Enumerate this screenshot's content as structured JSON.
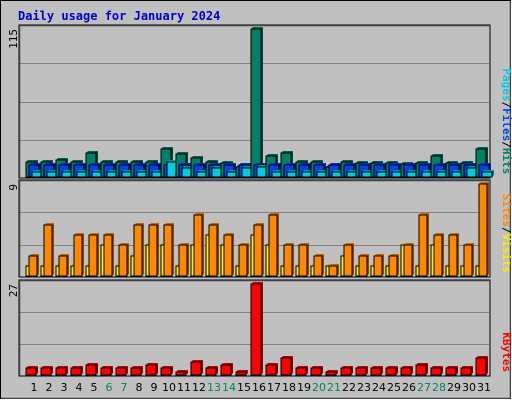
{
  "chart_data": [
    {
      "type": "bar",
      "title": "Daily usage for January 2024",
      "ylim": [
        0,
        115
      ],
      "yticklabel": "115",
      "axis_label_parts": [
        "Pages",
        "/",
        "Files",
        "/",
        "Hits"
      ],
      "categories": [
        "1",
        "2",
        "3",
        "4",
        "5",
        "6",
        "7",
        "8",
        "9",
        "10",
        "11",
        "12",
        "13",
        "14",
        "15",
        "16",
        "17",
        "18",
        "19",
        "20",
        "21",
        "22",
        "23",
        "24",
        "25",
        "26",
        "27",
        "28",
        "29",
        "30",
        "31"
      ],
      "weekend_days": [
        "6",
        "7",
        "13",
        "14",
        "20",
        "21",
        "27",
        "28"
      ],
      "series": [
        {
          "name": "Hits",
          "values": [
            12,
            12,
            13,
            12,
            19,
            12,
            12,
            12,
            12,
            22,
            18,
            15,
            12,
            11,
            8,
            115,
            16,
            19,
            12,
            12,
            8,
            12,
            11,
            11,
            11,
            10,
            11,
            16,
            11,
            11,
            22
          ]
        },
        {
          "name": "Files",
          "values": [
            9,
            9,
            9,
            9,
            9,
            9,
            9,
            9,
            9,
            9,
            9,
            9,
            9,
            9,
            9,
            9,
            9,
            9,
            9,
            9,
            9,
            9,
            9,
            9,
            9,
            9,
            9,
            9,
            9,
            9,
            9
          ]
        },
        {
          "name": "Pages",
          "values": [
            4,
            4,
            4,
            4,
            4,
            4,
            4,
            4,
            4,
            12,
            7,
            4,
            7,
            4,
            7,
            8,
            4,
            4,
            4,
            4,
            4,
            4,
            4,
            4,
            4,
            4,
            4,
            4,
            4,
            7,
            4
          ]
        }
      ],
      "colors": {
        "Hits": "#008066",
        "Files": "#0044ee",
        "Pages": "#00ccdd"
      }
    },
    {
      "type": "bar",
      "ylim": [
        0,
        9
      ],
      "yticklabel": "9",
      "axis_label_parts": [
        "Sites",
        "/",
        "Visits"
      ],
      "categories": [
        "1",
        "2",
        "3",
        "4",
        "5",
        "6",
        "7",
        "8",
        "9",
        "10",
        "11",
        "12",
        "13",
        "14",
        "15",
        "16",
        "17",
        "18",
        "19",
        "20",
        "21",
        "22",
        "23",
        "24",
        "25",
        "26",
        "27",
        "28",
        "29",
        "30",
        "31"
      ],
      "series": [
        {
          "name": "Visits",
          "values": [
            1,
            1,
            1,
            1,
            1,
            3,
            1,
            2,
            3,
            3,
            1,
            3,
            4,
            3,
            1,
            4,
            3,
            1,
            1,
            1,
            1,
            2,
            1,
            1,
            1,
            3,
            1,
            3,
            1,
            1,
            1
          ]
        },
        {
          "name": "Sites",
          "values": [
            2,
            5,
            2,
            4,
            4,
            4,
            3,
            5,
            5,
            5,
            3,
            6,
            5,
            4,
            3,
            5,
            6,
            3,
            3,
            2,
            1,
            3,
            2,
            2,
            2,
            3,
            6,
            4,
            4,
            3,
            9
          ]
        }
      ],
      "colors": {
        "Visits": "#ffee00",
        "Sites": "#ff8800"
      }
    },
    {
      "type": "bar",
      "ylim": [
        0,
        27
      ],
      "yticklabel": "27",
      "axis_label_parts": [
        "KBytes"
      ],
      "categories": [
        "1",
        "2",
        "3",
        "4",
        "5",
        "6",
        "7",
        "8",
        "9",
        "10",
        "11",
        "12",
        "13",
        "14",
        "15",
        "16",
        "17",
        "18",
        "19",
        "20",
        "21",
        "22",
        "23",
        "24",
        "25",
        "26",
        "27",
        "28",
        "29",
        "30",
        "31"
      ],
      "series": [
        {
          "name": "KBytes",
          "values": [
            2,
            2,
            2,
            2,
            3,
            2,
            2,
            2,
            3,
            2,
            1,
            4,
            2,
            3,
            1,
            27,
            3,
            5,
            2,
            2,
            1,
            2,
            2,
            2,
            2,
            2,
            3,
            2,
            2,
            2,
            5
          ]
        }
      ],
      "colors": {
        "KBytes": "#ff0000"
      }
    }
  ],
  "colors": {
    "panel_bg": "#c0c0c0",
    "title": "#0000cc",
    "weekend_label": "#008066",
    "weekday_label": "#000000",
    "separator": "#00cccc",
    "slash": "#000000"
  }
}
